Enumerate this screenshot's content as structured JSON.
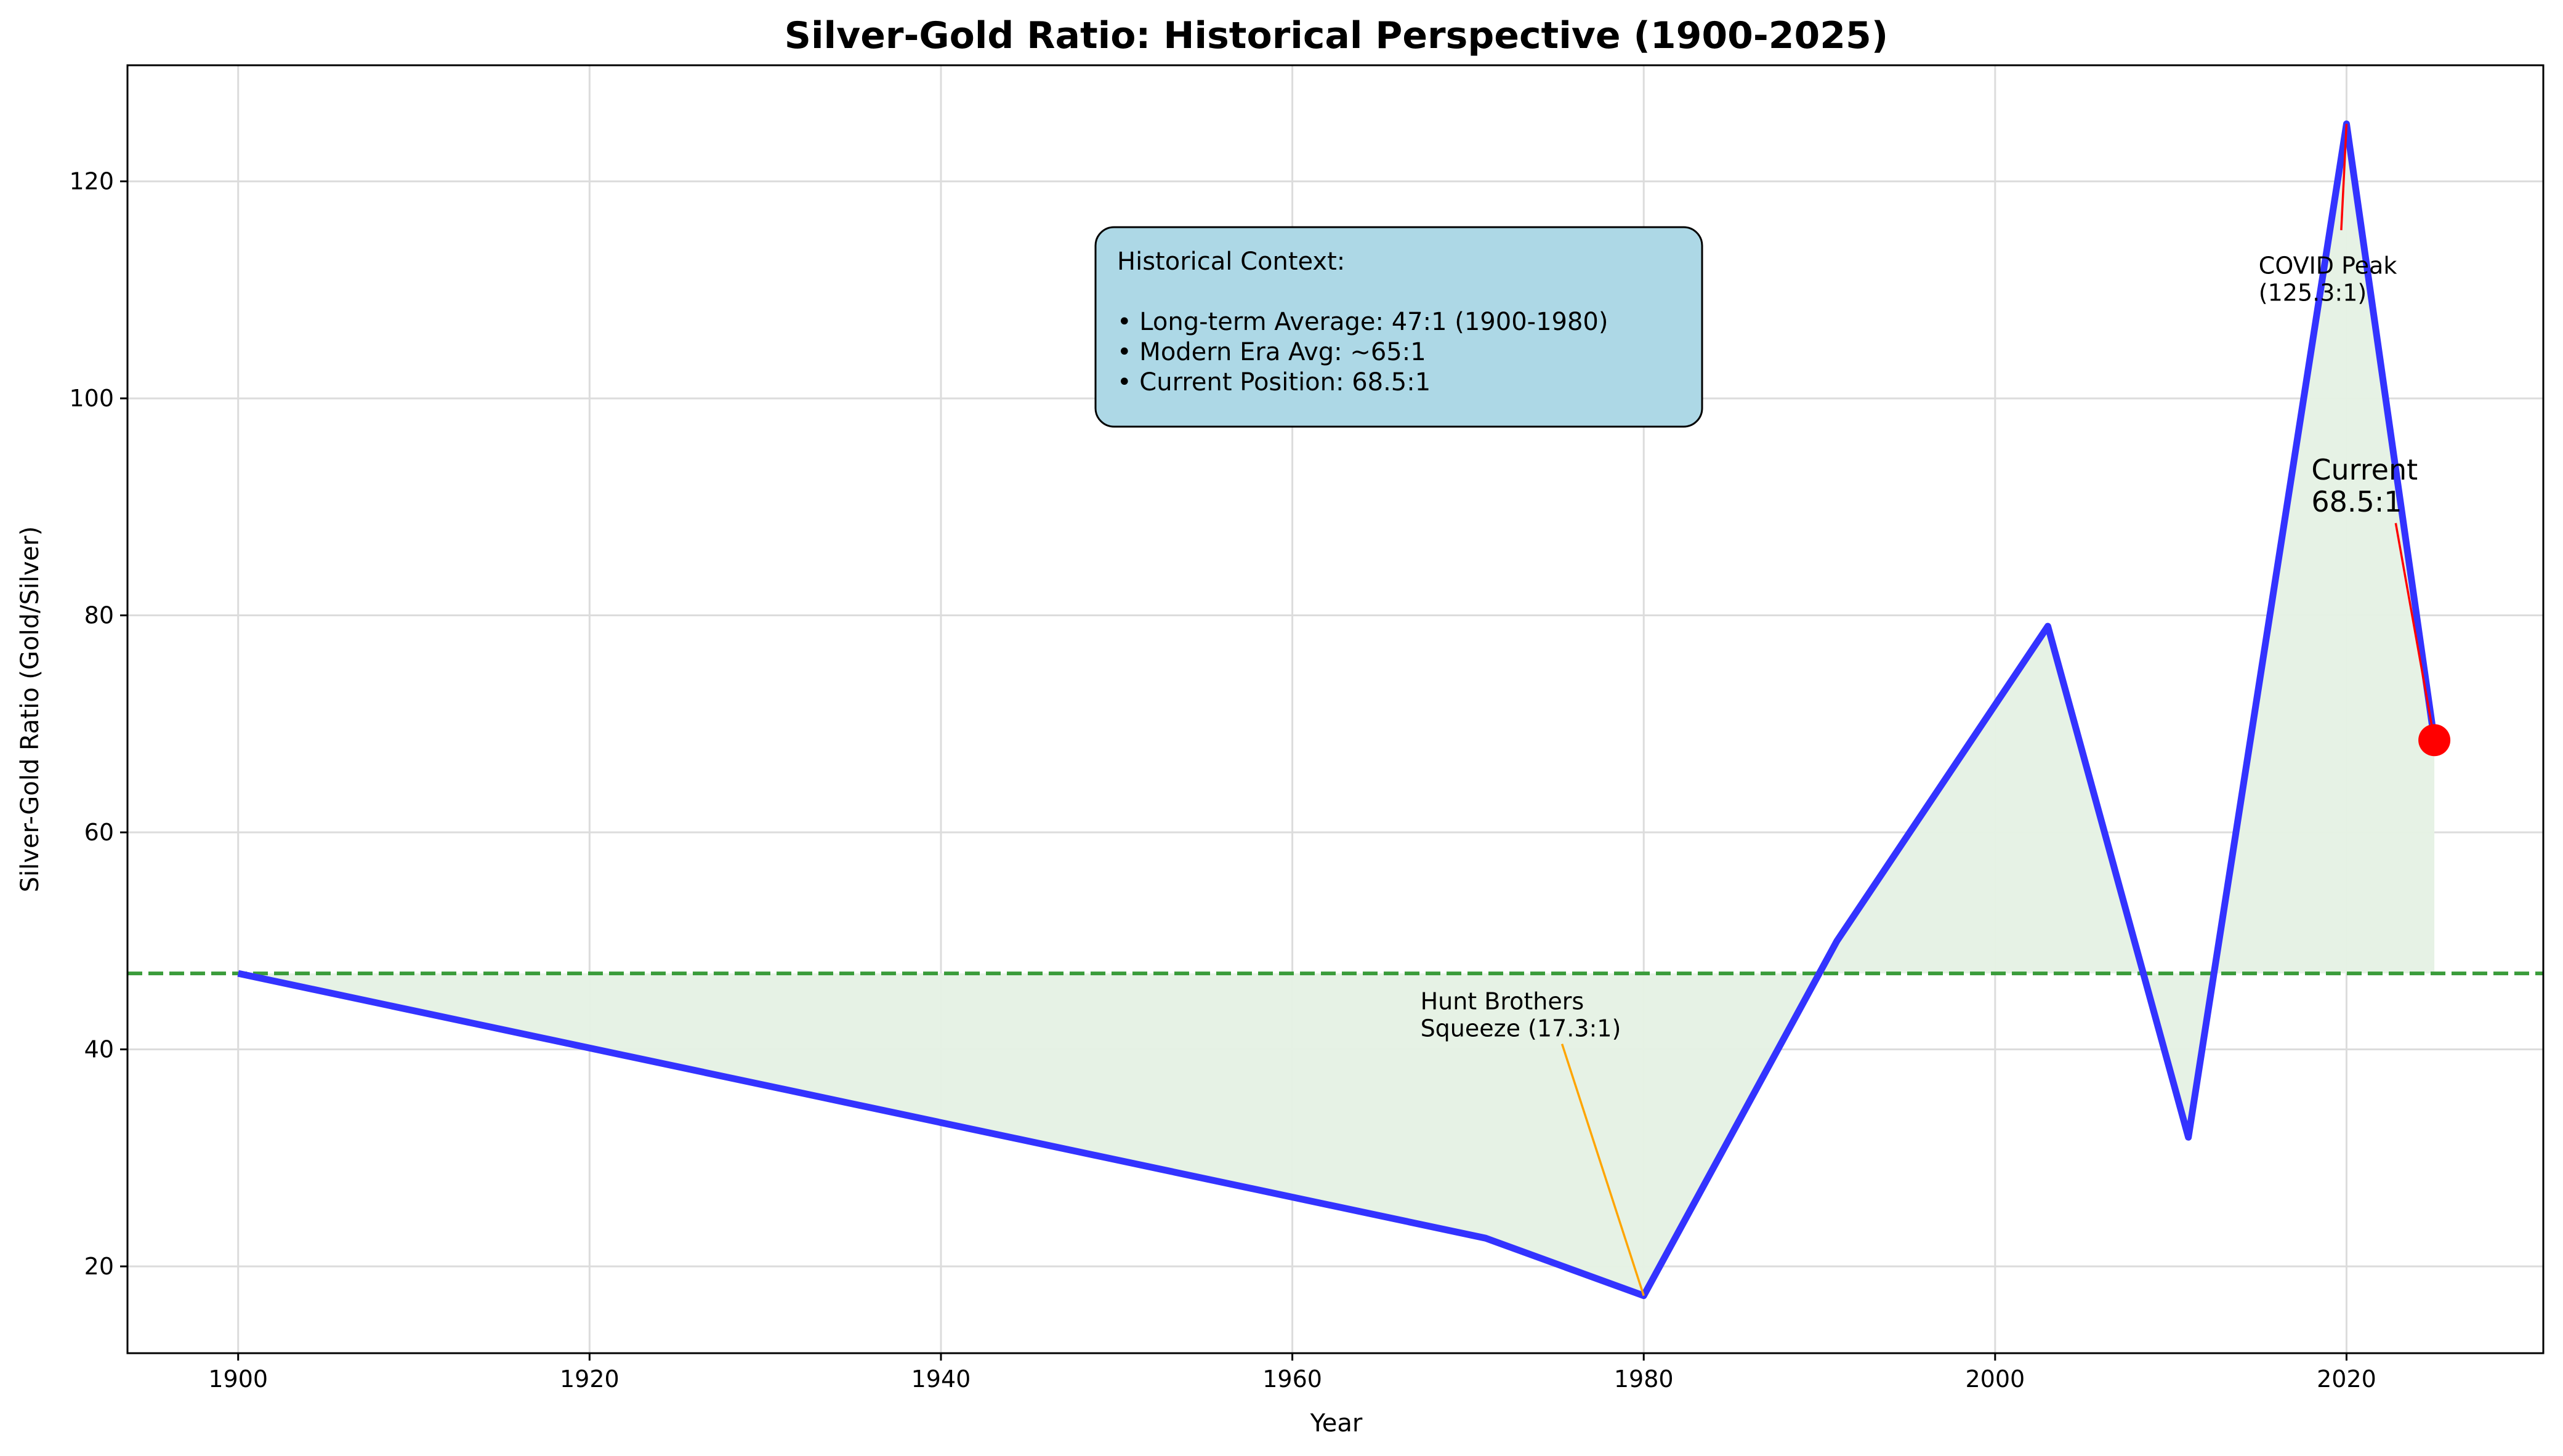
{
  "chart_data": {
    "type": "line",
    "title": "Silver-Gold Ratio: Historical Perspective (1900-2025)",
    "xlabel": "Year",
    "ylabel": "Silver-Gold Ratio (Gold/Silver)",
    "xlim": [
      1893.7,
      2031.2
    ],
    "ylim": [
      12.0,
      130.7
    ],
    "xticks": [
      1900,
      1920,
      1940,
      1960,
      1980,
      2000,
      2020
    ],
    "yticks": [
      20,
      40,
      60,
      80,
      100,
      120
    ],
    "grid": true,
    "series": [
      {
        "name": "Ratio",
        "color": "#3333ff",
        "x": [
          1900,
          1971,
          1980,
          1991,
          2003,
          2011,
          2020,
          2025
        ],
        "y": [
          47,
          22.6,
          17.3,
          50,
          79,
          31.9,
          125.3,
          68.5
        ]
      }
    ],
    "reference_line": {
      "y": 47,
      "color": "#3a9c3a"
    },
    "fill_color": "#e5f1e4",
    "current_point": {
      "x": 2025,
      "y": 68.5,
      "color": "#ff0000"
    },
    "annotations": [
      {
        "lines": [
          "Hunt Brothers",
          "Squeeze (17.3:1)"
        ],
        "x": 1980,
        "y": 17.3,
        "tx": 1975,
        "ty": 39,
        "color": "#ffa500"
      },
      {
        "lines": [
          "COVID Peak",
          "(125.3:1)"
        ],
        "x": 2020,
        "y": 125.3,
        "tx": 2015,
        "ty": 109,
        "color": "#ff0000"
      },
      {
        "lines": [
          "Current",
          "68.5:1"
        ],
        "x": 2025,
        "y": 68.5,
        "tx": 2018,
        "ty": 89.5,
        "color": "#ff0000"
      }
    ],
    "context_box": {
      "lines": [
        "Historical Context:",
        "",
        "• Long-term Average: 47:1 (1900-1980)",
        "• Modern Era Avg: ~65:1",
        "• Current Position: 68.5:1"
      ],
      "bg": "#add8e6"
    }
  }
}
